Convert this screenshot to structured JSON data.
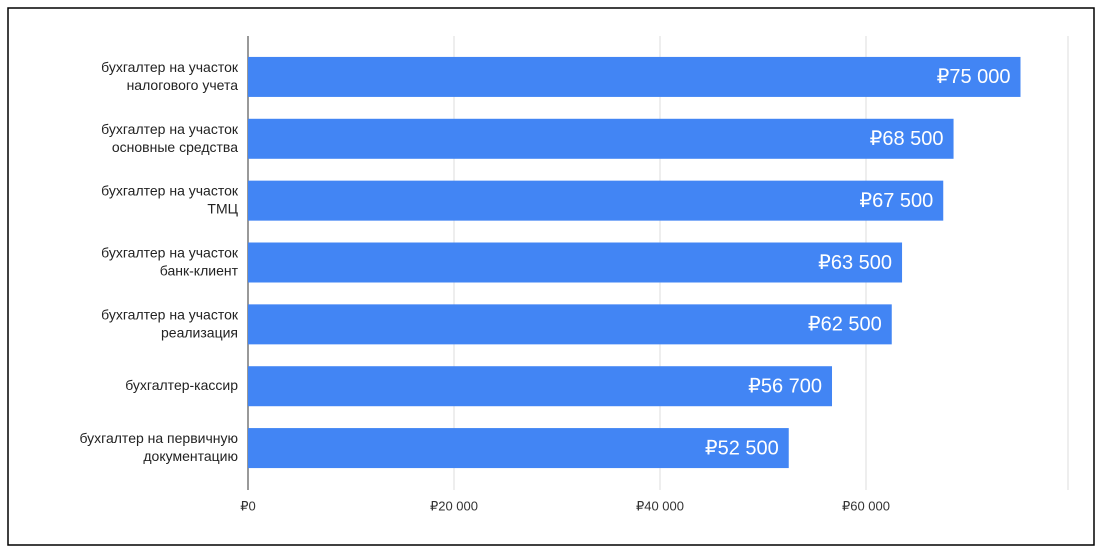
{
  "chart_data": {
    "type": "bar",
    "orientation": "horizontal",
    "categories": [
      "бухгалтер на участок\nналогового учета",
      "бухгалтер на участок\nосновные средства",
      "бухгалтер на участок\nТМЦ",
      "бухгалтер на участок\nбанк-клиент",
      "бухгалтер на участок\nреализация",
      "бухгалтер-кассир",
      "бухгалтер на первичную\nдокументацию"
    ],
    "values": [
      75000,
      68500,
      67500,
      63500,
      62500,
      56700,
      52500
    ],
    "value_labels": [
      "₽75 000",
      "₽68 500",
      "₽67 500",
      "₽63 500",
      "₽62 500",
      "₽56 700",
      "₽52 500"
    ],
    "color": "#4285f4",
    "xlim": [
      0,
      80000
    ],
    "xticks": [
      {
        "value": 0,
        "label": "₽0"
      },
      {
        "value": 20000,
        "label": "₽20 000"
      },
      {
        "value": 40000,
        "label": "₽40 000"
      },
      {
        "value": 60000,
        "label": "₽60 000"
      }
    ],
    "grid": true
  }
}
